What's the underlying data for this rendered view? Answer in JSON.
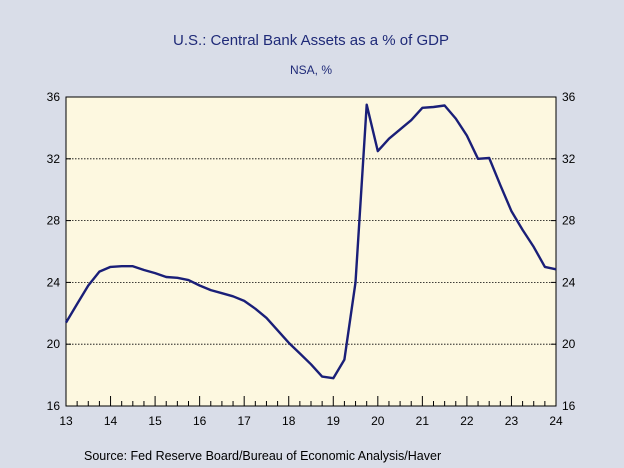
{
  "chart_data": {
    "type": "line",
    "title": "U.S.: Central Bank Assets as a % of GDP",
    "subtitle": "NSA, %",
    "source": "Source:  Fed Reserve Board/Bureau of Economic Analysis/Haver",
    "xlabel": "",
    "ylabel": "",
    "xlim": [
      2013.0,
      2024.0
    ],
    "ylim": [
      16,
      36
    ],
    "x_ticks": [
      2013,
      2014,
      2015,
      2016,
      2017,
      2018,
      2019,
      2020,
      2021,
      2022,
      2023,
      2024
    ],
    "x_tick_labels": [
      "13",
      "14",
      "15",
      "16",
      "17",
      "18",
      "19",
      "20",
      "21",
      "22",
      "23",
      "24"
    ],
    "y_ticks": [
      16,
      20,
      24,
      28,
      32,
      36
    ],
    "y_tick_labels": [
      "16",
      "20",
      "24",
      "28",
      "32",
      "36"
    ],
    "grid": true,
    "background": "#fdf8e0",
    "line_color": "#1a1f78",
    "series": [
      {
        "x": [
          2013.0,
          2013.25,
          2013.5,
          2013.75,
          2014.0,
          2014.25,
          2014.5,
          2014.75,
          2015.0,
          2015.25,
          2015.5,
          2015.75,
          2016.0,
          2016.25,
          2016.5,
          2016.75,
          2017.0,
          2017.25,
          2017.5,
          2017.75,
          2018.0,
          2018.25,
          2018.5,
          2018.75,
          2019.0,
          2019.25,
          2019.5,
          2019.75,
          2020.0,
          2020.25,
          2020.5,
          2020.75,
          2021.0,
          2021.25,
          2021.5,
          2021.75,
          2022.0,
          2022.25,
          2022.5,
          2022.75,
          2023.0,
          2023.25,
          2023.5,
          2023.75,
          2024.0
        ],
        "y": [
          21.4,
          22.6,
          23.8,
          24.7,
          25.0,
          25.05,
          25.05,
          24.8,
          24.6,
          24.35,
          24.3,
          24.15,
          23.8,
          23.5,
          23.3,
          23.1,
          22.8,
          22.3,
          21.7,
          20.9,
          20.1,
          19.4,
          18.7,
          17.9,
          17.8,
          19.0,
          24.0,
          35.5,
          32.5,
          33.3,
          33.9,
          34.5,
          35.3,
          35.35,
          35.45,
          34.6,
          33.5,
          32.0,
          32.05,
          30.3,
          28.6,
          27.4,
          26.3,
          25.0,
          24.85
        ]
      }
    ]
  }
}
